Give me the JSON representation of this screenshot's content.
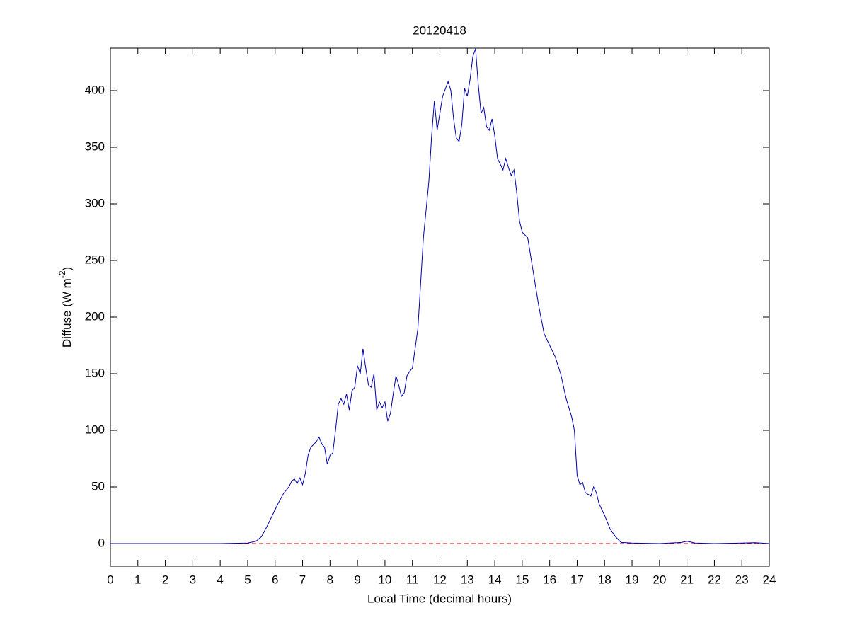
{
  "chart_data": {
    "type": "line",
    "title": "20120418",
    "xlabel": "Local Time (decimal hours)",
    "ylabel": [
      "Diffuse (W m",
      "-2",
      ")"
    ],
    "xlim": [
      0,
      24
    ],
    "xticks": [
      0,
      1,
      2,
      3,
      4,
      5,
      6,
      7,
      8,
      9,
      10,
      11,
      12,
      13,
      14,
      15,
      16,
      17,
      18,
      19,
      20,
      21,
      22,
      23,
      24
    ],
    "ylim": [
      -20,
      437.5
    ],
    "yticks": [
      0,
      50,
      100,
      150,
      200,
      250,
      300,
      350,
      400
    ],
    "reference_line": {
      "value": 0,
      "color": "#cc0000",
      "dashed": true
    },
    "series": [
      {
        "color": "#0000aa",
        "x": [
          0,
          1,
          2,
          3,
          4,
          5,
          5.3,
          5.5,
          5.7,
          5.9,
          6.1,
          6.3,
          6.5,
          6.6,
          6.7,
          6.8,
          6.9,
          7.0,
          7.1,
          7.2,
          7.3,
          7.5,
          7.6,
          7.7,
          7.8,
          7.9,
          8.0,
          8.1,
          8.2,
          8.3,
          8.4,
          8.5,
          8.6,
          8.7,
          8.8,
          8.9,
          9.0,
          9.1,
          9.2,
          9.3,
          9.4,
          9.5,
          9.6,
          9.7,
          9.8,
          9.9,
          10.0,
          10.1,
          10.2,
          10.3,
          10.4,
          10.5,
          10.6,
          10.7,
          10.8,
          10.9,
          11.0,
          11.2,
          11.4,
          11.6,
          11.7,
          11.8,
          11.9,
          12.0,
          12.1,
          12.3,
          12.4,
          12.5,
          12.6,
          12.7,
          12.8,
          12.9,
          13.0,
          13.1,
          13.2,
          13.3,
          13.4,
          13.5,
          13.6,
          13.7,
          13.8,
          13.9,
          14.0,
          14.1,
          14.2,
          14.3,
          14.4,
          14.5,
          14.6,
          14.7,
          14.8,
          14.9,
          15.0,
          15.2,
          15.4,
          15.6,
          15.8,
          16.0,
          16.2,
          16.4,
          16.6,
          16.8,
          16.9,
          17.0,
          17.1,
          17.2,
          17.3,
          17.5,
          17.6,
          17.7,
          17.8,
          18.0,
          18.2,
          18.4,
          18.6,
          19.0,
          20.0,
          20.8,
          21.0,
          21.3,
          22.0,
          23.0,
          23.5,
          24
        ],
        "values": [
          0,
          0,
          0,
          0,
          0,
          0.5,
          2,
          6,
          15,
          25,
          35,
          44,
          50,
          55,
          57,
          53,
          58,
          52,
          62,
          78,
          85,
          90,
          94,
          88,
          85,
          70,
          78,
          80,
          100,
          123,
          128,
          123,
          132,
          118,
          135,
          138,
          157,
          150,
          172,
          155,
          140,
          138,
          150,
          118,
          125,
          120,
          125,
          108,
          115,
          132,
          148,
          140,
          130,
          133,
          148,
          152,
          155,
          190,
          270,
          320,
          360,
          391,
          365,
          380,
          395,
          408,
          400,
          375,
          358,
          355,
          370,
          402,
          395,
          410,
          430,
          437,
          405,
          380,
          385,
          368,
          365,
          375,
          360,
          340,
          335,
          330,
          340,
          332,
          325,
          330,
          310,
          285,
          275,
          270,
          240,
          210,
          185,
          175,
          165,
          150,
          128,
          112,
          100,
          60,
          52,
          54,
          45,
          42,
          50,
          45,
          35,
          25,
          13,
          6,
          1,
          0.5,
          0,
          1,
          2,
          0.5,
          0,
          0.5,
          0.8,
          0
        ]
      }
    ]
  }
}
